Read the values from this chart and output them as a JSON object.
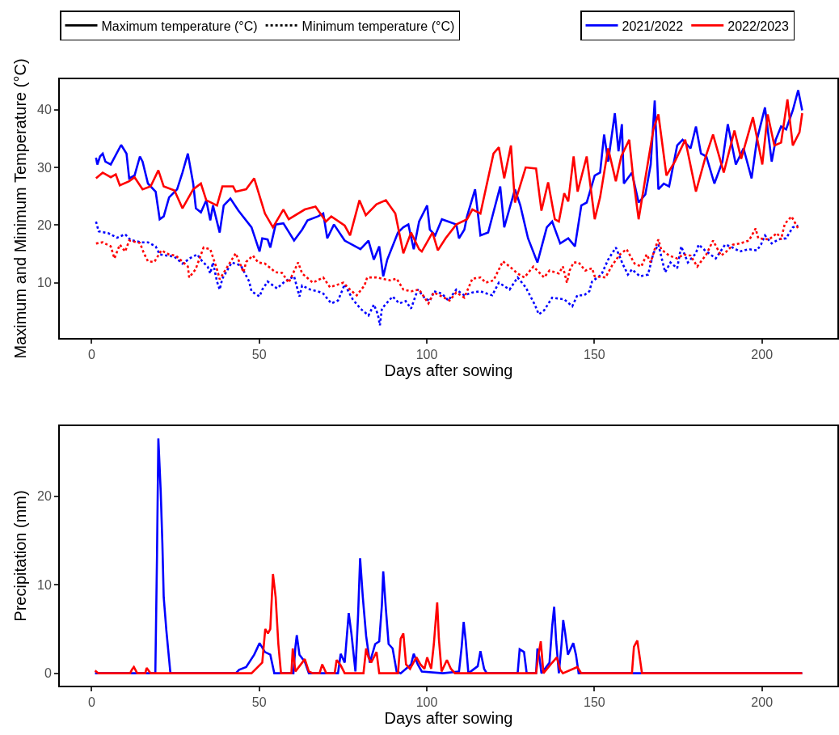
{
  "chart_data": [
    {
      "type": "line",
      "xlabel": "Days after sowing",
      "ylabel": "Maximum and Minimum Temperature (°C)",
      "xlim": [
        -9.5,
        222.5
      ],
      "xticks": [
        0,
        50,
        100,
        150,
        200
      ],
      "ylim": [
        0.4,
        45.3
      ],
      "yticks": [
        10,
        20,
        30,
        40
      ],
      "legend": "top",
      "annotations": [
        "Maximum temperature (°C)",
        "Minimum temperature (°C)"
      ],
      "series": [
        {
          "name": "2021/2022",
          "color": "#0000ff",
          "line_style": "solid",
          "x": [
            1.3,
            1.7,
            2.5,
            3.3,
            4.1,
            5.7,
            8.8,
            10.4,
            11.2,
            12.8,
            14.4,
            15.2,
            16.8,
            19.1,
            20.3,
            21.5,
            23.1,
            25.5,
            27.1,
            28.7,
            30.3,
            31.1,
            32.6,
            34.2,
            35.4,
            36.2,
            38.2,
            39.4,
            41.4,
            43.8,
            47.7,
            50.1,
            50.9,
            52.5,
            53.3,
            54.9,
            57.2,
            60.4,
            62.8,
            64.4,
            67.5,
            69.1,
            70.3,
            72.3,
            75.5,
            80.2,
            82.6,
            84.2,
            85.8,
            87,
            88.2,
            91.4,
            93,
            94.5,
            96.1,
            97.7,
            100.1,
            100.9,
            102.5,
            104.5,
            106.4,
            108.8,
            109.6,
            111.2,
            112,
            114.4,
            116,
            118.3,
            121.9,
            123.1,
            126.3,
            127.9,
            130.2,
            133,
            135.8,
            137.4,
            139.8,
            142.2,
            144.2,
            146.1,
            147.7,
            150.1,
            151.7,
            152.9,
            154.1,
            156.1,
            157.2,
            158.2,
            158.8,
            161.2,
            163.2,
            165.2,
            166.8,
            168,
            169.1,
            170.7,
            172.3,
            174.7,
            176.3,
            178.7,
            180.3,
            181.8,
            183.4,
            185.8,
            188.2,
            189.8,
            192.2,
            194.5,
            196.9,
            198.5,
            200.9,
            202.9,
            204.1,
            205.7,
            207.2,
            209.2,
            210.8,
            212
          ],
          "values": [
            31.7,
            30.5,
            31.9,
            32.4,
            31,
            30.5,
            33.9,
            32.4,
            28.1,
            28.6,
            31.9,
            31,
            27.2,
            25.8,
            21,
            21.5,
            24.8,
            26.2,
            29.1,
            32.4,
            27.2,
            22.9,
            22.2,
            24.3,
            20.8,
            23.4,
            18.7,
            23.4,
            24.6,
            22.5,
            19.6,
            15.4,
            17.7,
            17.5,
            16.1,
            20.1,
            20.3,
            17.3,
            19.2,
            20.8,
            21.5,
            22,
            17.7,
            20.1,
            17.3,
            15.8,
            17.3,
            14,
            16.3,
            11.1,
            14,
            18.7,
            19.6,
            20.1,
            15.8,
            20.6,
            23.4,
            19.2,
            18.2,
            21,
            20.6,
            20.1,
            17.7,
            19.2,
            21.5,
            26.2,
            18.2,
            18.7,
            26.7,
            19.6,
            26.2,
            23.4,
            17.7,
            13.5,
            19.6,
            20.6,
            16.8,
            17.7,
            16.3,
            23.4,
            23.9,
            28.6,
            29.1,
            35.7,
            31,
            39.4,
            32.8,
            37.5,
            27.2,
            29.1,
            23.9,
            25.3,
            30.5,
            41.6,
            26.2,
            27.2,
            26.7,
            33.8,
            34.8,
            33.3,
            37.1,
            32.4,
            31.9,
            27.2,
            31,
            37.5,
            30.5,
            33.3,
            28.1,
            34.8,
            40.4,
            31,
            34.8,
            37.1,
            36.6,
            39.9,
            43.4,
            39.9
          ]
        },
        {
          "name": "2022/2023",
          "color": "#ff0000",
          "line_style": "solid",
          "x": [
            1.3,
            3.3,
            5.7,
            7.2,
            8.4,
            11.2,
            12.8,
            15.2,
            17.6,
            19.9,
            21.5,
            24.7,
            27.1,
            30.3,
            32.6,
            34.2,
            37.4,
            39,
            42.2,
            43,
            46.1,
            48.5,
            51.7,
            54.1,
            57.2,
            58.8,
            63.6,
            66.8,
            69.9,
            71.5,
            75.5,
            77.1,
            79.9,
            81.8,
            85,
            87.8,
            90.6,
            93,
            95.3,
            97.7,
            98.5,
            101.7,
            103.3,
            105.6,
            108.8,
            112,
            113.6,
            116,
            119.9,
            121.5,
            123.1,
            125.1,
            126.3,
            129.5,
            132.6,
            134.2,
            136.2,
            138.2,
            139.4,
            141,
            142.2,
            143.8,
            145,
            147.7,
            150.1,
            151.7,
            154.1,
            156.4,
            158,
            160.4,
            161.6,
            163.2,
            165.2,
            167.6,
            169.1,
            171.5,
            174,
            177.1,
            180.3,
            183,
            185.4,
            188.6,
            191.8,
            193.8,
            197.3,
            200.1,
            201.7,
            203.7,
            205.7,
            207.6,
            209.2,
            211.2,
            212
          ],
          "values": [
            28.1,
            29.1,
            28.3,
            28.8,
            26.9,
            27.6,
            28.3,
            26.2,
            26.7,
            29.5,
            26.7,
            26,
            22.9,
            26.2,
            27.2,
            24.3,
            23.4,
            26.7,
            26.7,
            25.8,
            26.2,
            28.1,
            22,
            19.6,
            22.7,
            21,
            22.7,
            23.2,
            20.6,
            21.5,
            19.9,
            18.2,
            24.3,
            21.7,
            23.6,
            24.3,
            22,
            15.1,
            18.7,
            15.8,
            15.4,
            18.7,
            15.6,
            17.7,
            20.1,
            21,
            22.7,
            22,
            32.4,
            33.5,
            28.1,
            33.8,
            23.9,
            30,
            29.8,
            22.5,
            27.4,
            21,
            20.6,
            25.5,
            24.1,
            31.9,
            25.8,
            31.9,
            21,
            24.8,
            33.3,
            27.6,
            31.9,
            34.8,
            28.1,
            21,
            28.1,
            36.6,
            39.2,
            28.6,
            31,
            34.8,
            25.8,
            31.5,
            35.7,
            29.1,
            36.4,
            31.5,
            38.7,
            30.5,
            39.2,
            33.8,
            34.3,
            41.8,
            33.8,
            36.1,
            39.4
          ]
        },
        {
          "color": "#0000ff",
          "line_style": "dotted",
          "x": [
            1.3,
            2.1,
            4.9,
            7.6,
            10,
            11.6,
            14.8,
            16.8,
            19.1,
            20.3,
            24.7,
            27.1,
            29.5,
            31.5,
            33,
            34.6,
            35.4,
            36.2,
            37.4,
            38.2,
            39,
            41.8,
            44.5,
            47,
            47.7,
            50.1,
            50.9,
            52.5,
            55.3,
            57.6,
            60.4,
            62,
            62.8,
            65.2,
            67.5,
            69.1,
            71.5,
            73.5,
            75.5,
            77.9,
            80.2,
            82.6,
            84.2,
            85.4,
            86,
            86.6,
            89.8,
            91.8,
            93.7,
            95.3,
            97.3,
            99.3,
            100.9,
            102.1,
            104.5,
            106.4,
            108.8,
            111.2,
            113.6,
            116,
            119.5,
            121.5,
            124.7,
            127.1,
            129.5,
            132.2,
            133.4,
            135,
            137.4,
            141,
            143.4,
            144.9,
            146.9,
            148.5,
            149.3,
            152.1,
            154.1,
            156.4,
            158.4,
            160,
            161.2,
            163.6,
            166,
            167.6,
            169.1,
            171.1,
            172.7,
            174.7,
            175.9,
            177.9,
            180.3,
            181.1,
            183,
            186.2,
            189,
            190.6,
            193.4,
            196.1,
            198.5,
            199.7,
            200.9,
            202.9,
            204.9,
            207.2,
            209.2,
            210.8
          ],
          "values": [
            20.6,
            18.9,
            18.6,
            17.8,
            18.4,
            17.4,
            17,
            17,
            16.3,
            14.9,
            14.5,
            13.3,
            14.3,
            14.9,
            13.7,
            12.8,
            11.6,
            13.5,
            10.2,
            8.8,
            10.7,
            13.5,
            13,
            10.2,
            8.5,
            7.6,
            8.8,
            10.2,
            9,
            10.2,
            11.1,
            7.6,
            9.5,
            8.8,
            8.5,
            8.1,
            6.4,
            6.9,
            9.7,
            7.1,
            5.5,
            4.3,
            6.2,
            4.5,
            2.6,
            5.5,
            7.6,
            6.4,
            6.8,
            5.5,
            8.8,
            7.4,
            6.8,
            8.5,
            8.1,
            6.9,
            8.8,
            7.8,
            8.3,
            8.5,
            7.8,
            10,
            8.8,
            10.9,
            9.2,
            6.2,
            4.5,
            5.2,
            7.4,
            7.1,
            5.9,
            7.8,
            7.8,
            8.5,
            10.2,
            11.4,
            14,
            16.1,
            13.3,
            11.4,
            12.3,
            11.1,
            11.4,
            15.1,
            16.6,
            11.8,
            13.5,
            12.5,
            16.3,
            13.5,
            15.1,
            16.6,
            15.6,
            14.2,
            16.6,
            16.3,
            15.4,
            15.8,
            15.6,
            16.6,
            18.2,
            16.8,
            17.5,
            17.7,
            19.6,
            19.9
          ]
        },
        {
          "color": "#ff0000",
          "line_style": "dotted",
          "x": [
            1.3,
            3.3,
            5.7,
            6.8,
            8.4,
            10,
            11.2,
            14.4,
            15.6,
            16.8,
            18.7,
            20.8,
            23.1,
            25.1,
            28.7,
            29.1,
            31,
            33.4,
            35.4,
            37.4,
            38.2,
            39.8,
            43,
            45.3,
            46.1,
            48.1,
            49.7,
            51.7,
            54.9,
            56.8,
            58.8,
            61.6,
            62.8,
            66,
            69.1,
            71.1,
            75.1,
            77.1,
            79.1,
            81.4,
            82.2,
            85,
            89,
            91,
            93,
            95.3,
            97.7,
            100.5,
            102.1,
            104.5,
            106.8,
            108.8,
            111.2,
            113.6,
            116,
            117.6,
            119.9,
            122.7,
            124.7,
            127.1,
            129.1,
            131.8,
            135,
            136.6,
            139.4,
            140.6,
            141.8,
            142.6,
            143.8,
            145.3,
            147.3,
            149.3,
            150.1,
            153.3,
            155.3,
            157.6,
            159.6,
            162,
            164,
            165.6,
            166.8,
            168,
            169.1,
            169.9,
            172.3,
            174.7,
            176.7,
            178.7,
            180.7,
            183.4,
            185.4,
            187.8,
            189.4,
            191.4,
            193.4,
            196.1,
            198.1,
            198.9,
            202.1,
            204.5,
            205.7,
            206.8,
            208.8,
            210.8
          ],
          "values": [
            16.8,
            17,
            16.3,
            14.2,
            16.6,
            15.4,
            17.3,
            16.9,
            15.1,
            13.7,
            13.6,
            15.6,
            14.9,
            14.7,
            12.8,
            10.9,
            12.3,
            16.1,
            15.8,
            12.3,
            10.6,
            12.1,
            15.1,
            11.8,
            13.6,
            14.7,
            13.5,
            13.3,
            11.8,
            11.7,
            10,
            13.5,
            11.6,
            10,
            10.9,
            9.2,
            10,
            8.8,
            7.8,
            9.5,
            10.9,
            10.9,
            10.4,
            10.7,
            8.8,
            8.5,
            8.8,
            6.4,
            8.3,
            7.6,
            6.9,
            8.3,
            7.4,
            10.7,
            10.9,
            10,
            10.4,
            13.7,
            12.8,
            11.6,
            10.9,
            12.8,
            10.9,
            12.1,
            11.6,
            12.8,
            10,
            12.1,
            13.5,
            13.5,
            12.1,
            12.5,
            11.1,
            10.9,
            13,
            14.9,
            15.8,
            13.3,
            12.8,
            14.9,
            13.5,
            15.8,
            17.5,
            15.8,
            14.7,
            14.2,
            14.9,
            14.7,
            12.8,
            14.9,
            17.3,
            14.7,
            15.4,
            16.6,
            16.8,
            17.3,
            19.4,
            17.7,
            17.5,
            18.6,
            17.5,
            20.2,
            21.5,
            19.4
          ]
        }
      ]
    },
    {
      "type": "line",
      "xlabel": "Days after sowing",
      "ylabel": "Precipitation (mm)",
      "xlim": [
        -9.5,
        222.5
      ],
      "xticks": [
        0,
        50,
        100,
        150,
        200
      ],
      "ylim": [
        -1.4,
        27.9
      ],
      "yticks": [
        0,
        10,
        20
      ],
      "series": [
        {
          "color": "#0000ff",
          "x": [
            1,
            19,
            19.5,
            19.9,
            20.6,
            21.1,
            21.5,
            22.3,
            23.1,
            23.5,
            43,
            44,
            46.1,
            48.5,
            50.1,
            51.7,
            53.3,
            54.5,
            60.2,
            60.8,
            61.2,
            62,
            63.6,
            64.8,
            73.5,
            74.3,
            75.5,
            76.7,
            77.5,
            78.7,
            79.5,
            80.1,
            80.9,
            81.9,
            83,
            84.6,
            85.8,
            86.6,
            87,
            87.8,
            88.6,
            89.8,
            91,
            92.2,
            95.3,
            96.1,
            97.3,
            98.5,
            104.8,
            109.6,
            110.4,
            111,
            111.6,
            112.4,
            115.2,
            116,
            117.1,
            117.9,
            127.1,
            127.7,
            129,
            129.8,
            132.6,
            133,
            133.6,
            134.2,
            136.6,
            137.4,
            138,
            138.6,
            139.4,
            140.2,
            140.7,
            141.3,
            142.1,
            143.7,
            144.5,
            145.3,
            212
          ],
          "values": [
            0,
            0,
            13.3,
            26.5,
            20.6,
            14.7,
            8.6,
            4.8,
            1.6,
            0,
            0,
            0.4,
            0.7,
            2.1,
            3.4,
            2.4,
            2.1,
            0,
            0,
            3,
            4.3,
            2.1,
            1.3,
            0,
            0,
            2.2,
            1.2,
            6.8,
            4.5,
            0.2,
            6.6,
            13,
            8.6,
            4.2,
            1.2,
            3.3,
            3.6,
            7.7,
            11.5,
            7.2,
            3.3,
            2.8,
            0.2,
            0,
            1,
            2.2,
            1,
            0.2,
            0,
            0.2,
            3,
            5.8,
            3.7,
            0,
            0.8,
            2.5,
            0.5,
            0,
            0,
            2.7,
            2.4,
            0,
            0,
            2.8,
            1.8,
            0,
            1.2,
            5.3,
            7.5,
            3.6,
            0,
            3.3,
            6,
            4.5,
            2.1,
            3.4,
            2.1,
            0,
            0
          ]
        },
        {
          "color": "#ff0000",
          "x": [
            1,
            2,
            11.5,
            12,
            12.6,
            13.6,
            16,
            16.4,
            17.6,
            47.7,
            50.9,
            51.8,
            52.6,
            53.3,
            54.1,
            54.9,
            55.7,
            56.5,
            59.6,
            60,
            60.8,
            63.6,
            64.8,
            66,
            68,
            68.8,
            70,
            72.5,
            73.1,
            74.3,
            75.5,
            81.1,
            81.9,
            82.6,
            83.4,
            85,
            85.8,
            91.4,
            92.2,
            93,
            93.8,
            95,
            96.9,
            98.1,
            99.3,
            100.1,
            101.3,
            102.1,
            102.6,
            103.1,
            103.6,
            104.4,
            106,
            107.2,
            108.4,
            132.6,
            133.2,
            134,
            134.8,
            137.4,
            138.8,
            139.8,
            140.6,
            144.9,
            146.1,
            161.2,
            161.8,
            162.8,
            163.6,
            164.2,
            212
          ],
          "values": [
            0.3,
            0,
            0,
            0.4,
            0.7,
            0,
            0,
            0.6,
            0,
            0,
            1.2,
            5,
            4.5,
            5,
            11.2,
            8.6,
            3.3,
            0,
            0,
            2.8,
            0.2,
            1.6,
            0.2,
            0,
            0,
            1,
            0,
            0,
            1.5,
            0.9,
            0,
            0,
            2.8,
            1.8,
            1.2,
            2.4,
            0,
            0,
            3.9,
            4.5,
            1,
            0.5,
            1.8,
            1,
            0.5,
            1.8,
            0.5,
            3.3,
            5.7,
            8,
            3.9,
            0.2,
            1.5,
            0.5,
            0,
            0,
            1.8,
            3.6,
            0,
            1.2,
            1.8,
            0.4,
            0,
            0.7,
            0,
            0,
            3,
            3.7,
            1.6,
            0,
            0
          ]
        }
      ]
    }
  ]
}
